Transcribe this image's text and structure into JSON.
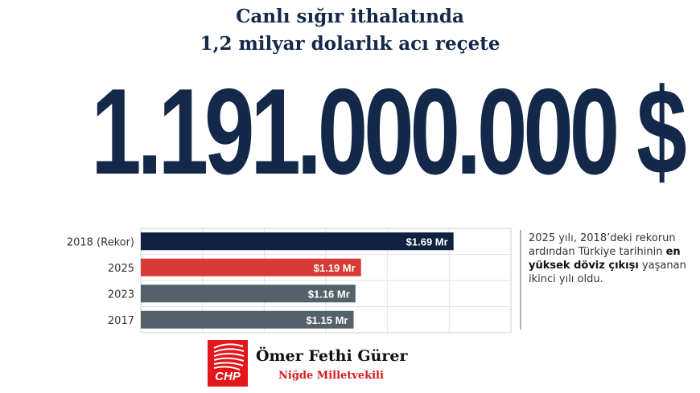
{
  "headline": {
    "line1": "Canlı sığır ithalatında",
    "line2": "1,2 milyar dolarlık acı reçete"
  },
  "big_number": "1.191.000.000 $",
  "chart_data": {
    "type": "bar",
    "orientation": "horizontal",
    "categories": [
      "2018 (Rekor)",
      "2025",
      "2023",
      "2017"
    ],
    "values": [
      1.69,
      1.19,
      1.16,
      1.15
    ],
    "data_labels": [
      "$1.69 Mr",
      "$1.19 Mr",
      "$1.16 Mr",
      "$1.15 Mr"
    ],
    "colors": [
      "#0f2240",
      "#d83a35",
      "#53616a",
      "#53616a"
    ],
    "xlim": [
      0,
      2
    ],
    "grid": true,
    "legend": "none"
  },
  "note": {
    "part1": "2025 yılı, 2018’deki rekorun ardından Türkiye tarihinin ",
    "bold": "en yüksek döviz çıkışı",
    "part2": " yaşanan ikinci yılı oldu."
  },
  "branding": {
    "logo_text": "CHP",
    "logo_color": "#e2161b",
    "name": "Ömer Fethi Gürer",
    "subtitle": "Niğde Milletvekili"
  }
}
